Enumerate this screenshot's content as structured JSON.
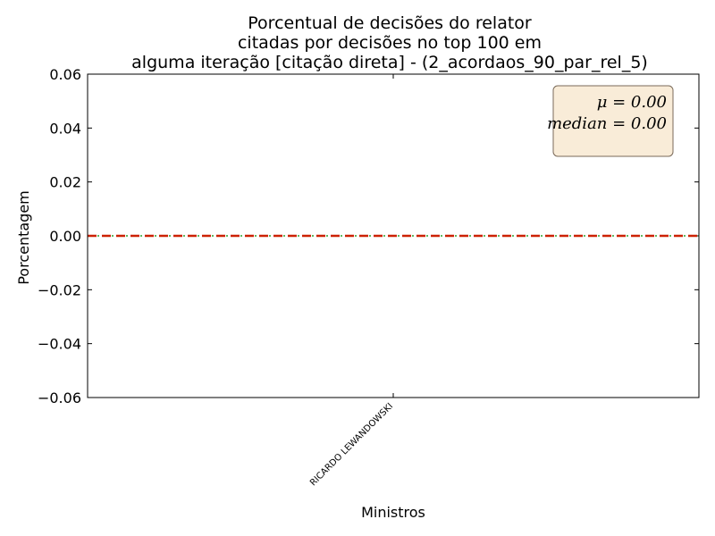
{
  "chart_data": {
    "type": "bar",
    "title_lines": [
      "Porcentual de decisões do relator",
      "citadas por decisões no top 100 em",
      "alguma iteração [citação direta] - (2_acordaos_90_par_rel_5)"
    ],
    "xlabel": "Ministros",
    "ylabel": "Porcentagem",
    "categories": [
      "RICARDO LEWANDOWSKI"
    ],
    "values": [
      0.0
    ],
    "ylim": [
      -0.06,
      0.06
    ],
    "yticks": [
      0.06,
      0.04,
      0.02,
      0.0,
      -0.02,
      -0.04,
      -0.06
    ],
    "ytick_labels": [
      "0.06",
      "0.04",
      "0.02",
      "0.00",
      "−0.02",
      "−0.04",
      "−0.06"
    ],
    "mean": 0.0,
    "median": 0.0,
    "stats_box": {
      "line1": "μ = 0.00",
      "line2": "median = 0.00",
      "placement": "top-right"
    },
    "grid": false,
    "colors": {
      "mean_line": "#cc2200",
      "median_line": "#2ca02c",
      "stats_box_fill": "#f9ecd8",
      "stats_box_edge": "#7a6a5a"
    }
  }
}
